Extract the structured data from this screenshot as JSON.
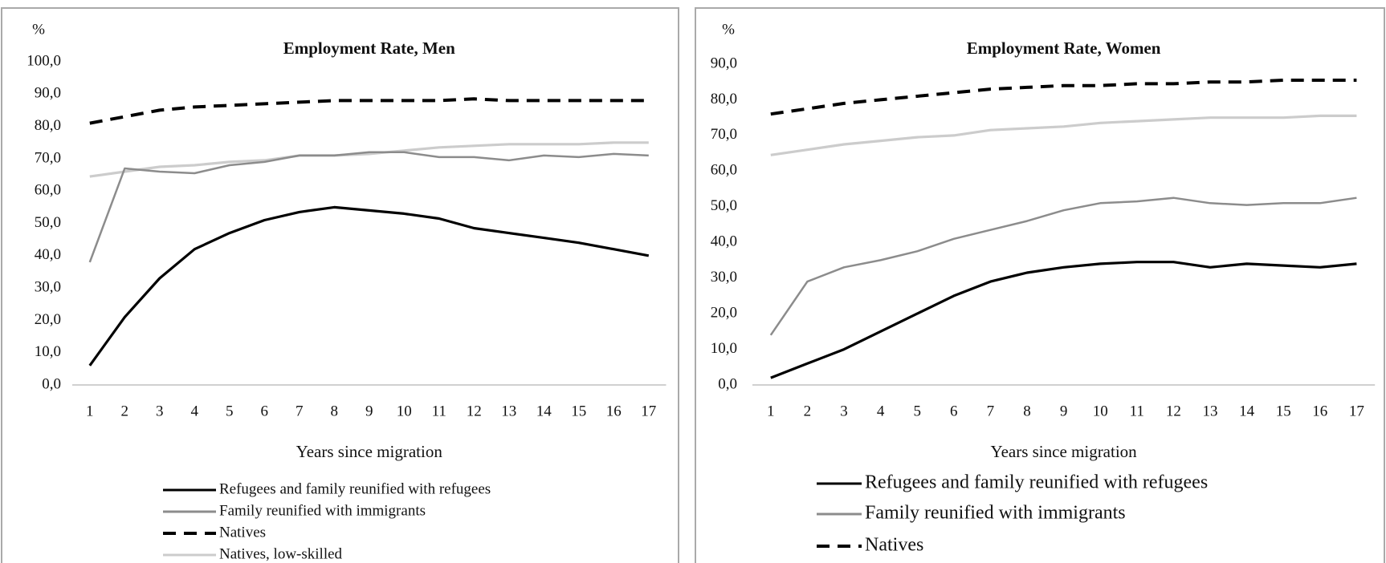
{
  "chart_data": [
    {
      "type": "line",
      "title": "Employment Rate, Men",
      "y_label": "%",
      "x_label": "Years since migration",
      "categories": [
        "1",
        "2",
        "3",
        "4",
        "5",
        "6",
        "7",
        "8",
        "9",
        "10",
        "11",
        "12",
        "13",
        "14",
        "15",
        "16",
        "17"
      ],
      "ylim": [
        0,
        100
      ],
      "yticks": [
        {
          "value": 0,
          "label": "0,0"
        },
        {
          "value": 10,
          "label": "10,0"
        },
        {
          "value": 20,
          "label": "20,0"
        },
        {
          "value": 30,
          "label": "30,0"
        },
        {
          "value": 40,
          "label": "40,0"
        },
        {
          "value": 50,
          "label": "50,0"
        },
        {
          "value": 60,
          "label": "60,0"
        },
        {
          "value": 70,
          "label": "70,0"
        },
        {
          "value": 80,
          "label": "80,0"
        },
        {
          "value": 90,
          "label": "90,0"
        },
        {
          "value": 100,
          "label": "100,0"
        }
      ],
      "series": [
        {
          "name": "Refugees and family reunified with refugees",
          "color": "#000000",
          "dashed": false,
          "values": [
            6,
            21,
            33,
            42,
            47,
            51,
            53.5,
            55,
            54,
            53,
            51.5,
            48.5,
            47,
            45.5,
            44,
            42,
            40
          ]
        },
        {
          "name": "Family reunified with immigrants",
          "color": "#8c8c8c",
          "dashed": false,
          "values": [
            38,
            67,
            66,
            65.5,
            68,
            69,
            71,
            71,
            72,
            72,
            70.5,
            70.5,
            69.5,
            71,
            70.5,
            71.5,
            71
          ]
        },
        {
          "name": "Natives",
          "color": "#000000",
          "dashed": true,
          "values": [
            81,
            83,
            85,
            86,
            86.5,
            87,
            87.5,
            88,
            88,
            88,
            88,
            88.5,
            88,
            88,
            88,
            88,
            88
          ]
        },
        {
          "name": "Natives, low-skilled",
          "color": "#cccccc",
          "dashed": false,
          "values": [
            64.5,
            66,
            67.5,
            68,
            69,
            69.5,
            71,
            71,
            71.5,
            72.5,
            73.5,
            74,
            74.5,
            74.5,
            74.5,
            75,
            75
          ]
        }
      ]
    },
    {
      "type": "line",
      "title": "Employment Rate, Women",
      "y_label": "%",
      "x_label": "Years since migration",
      "categories": [
        "1",
        "2",
        "3",
        "4",
        "5",
        "6",
        "7",
        "8",
        "9",
        "10",
        "11",
        "12",
        "13",
        "14",
        "15",
        "16",
        "17"
      ],
      "ylim": [
        0,
        90
      ],
      "yticks": [
        {
          "value": 0,
          "label": "0,0"
        },
        {
          "value": 10,
          "label": "10,0"
        },
        {
          "value": 20,
          "label": "20,0"
        },
        {
          "value": 30,
          "label": "30,0"
        },
        {
          "value": 40,
          "label": "40,0"
        },
        {
          "value": 50,
          "label": "50,0"
        },
        {
          "value": 60,
          "label": "60,0"
        },
        {
          "value": 70,
          "label": "70,0"
        },
        {
          "value": 80,
          "label": "80,0"
        },
        {
          "value": 90,
          "label": "90,0"
        }
      ],
      "series": [
        {
          "name": "Refugees and family reunified with refugees",
          "color": "#000000",
          "dashed": false,
          "values": [
            2,
            6,
            10,
            15,
            20,
            25,
            29,
            31.5,
            33,
            34,
            34.5,
            34.5,
            33,
            34,
            33.5,
            33,
            34
          ]
        },
        {
          "name": "Family reunified with immigrants",
          "color": "#8c8c8c",
          "dashed": false,
          "values": [
            14,
            29,
            33,
            35,
            37.5,
            41,
            43.5,
            46,
            49,
            51,
            51.5,
            52.5,
            51,
            50.5,
            51,
            51,
            52.5
          ]
        },
        {
          "name": "Natives",
          "color": "#000000",
          "dashed": true,
          "values": [
            76,
            77.5,
            79,
            80,
            81,
            82,
            83,
            83.5,
            84,
            84,
            84.5,
            84.5,
            85,
            85,
            85.5,
            85.5,
            85.5
          ]
        },
        {
          "color": "#cccccc",
          "dashed": false,
          "values": [
            64.5,
            66,
            67.5,
            68.5,
            69.5,
            70,
            71.5,
            72,
            72.5,
            73.5,
            74,
            74.5,
            75,
            75,
            75,
            75.5,
            75.5
          ]
        }
      ]
    }
  ]
}
